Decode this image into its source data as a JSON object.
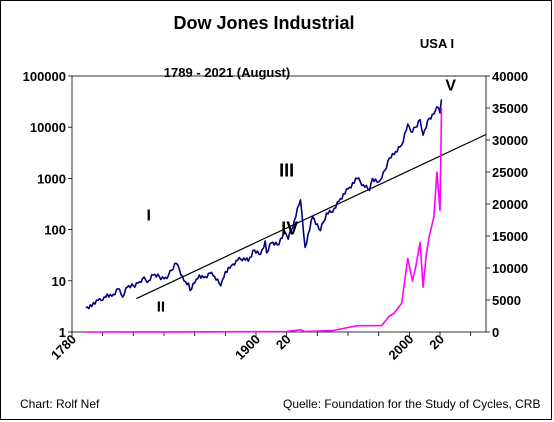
{
  "chart_data": {
    "type": "line",
    "title": "Dow Jones Industrial",
    "subtitle": "1789 -  2021 (August)",
    "top_label": "USA I",
    "xlim": [
      1780,
      2050
    ],
    "x_ticks": [
      "1780",
      "1900",
      "20",
      "2000",
      "20"
    ],
    "y_left": {
      "scale": "log",
      "lim": [
        1,
        100000
      ],
      "ticks": [
        "100000",
        "10000",
        "1000",
        "100",
        "10",
        "1"
      ]
    },
    "y_right": {
      "scale": "linear",
      "lim": [
        0,
        40000
      ],
      "ticks": [
        "40000",
        "35000",
        "30000",
        "25000",
        "20000",
        "15000",
        "10000",
        "5000",
        "0"
      ]
    },
    "series": [
      {
        "axis": "left",
        "color": "#00007f",
        "points": [
          [
            1789,
            3.0
          ],
          [
            1795,
            3.5
          ],
          [
            1798,
            4.5
          ],
          [
            1800,
            4.2
          ],
          [
            1803,
            5.5
          ],
          [
            1806,
            5.0
          ],
          [
            1810,
            7.0
          ],
          [
            1813,
            4.8
          ],
          [
            1816,
            7.5
          ],
          [
            1820,
            8.0
          ],
          [
            1823,
            9.0
          ],
          [
            1826,
            11.0
          ],
          [
            1830,
            10.0
          ],
          [
            1833,
            13.0
          ],
          [
            1837,
            12.0
          ],
          [
            1840,
            11.0
          ],
          [
            1843,
            13.0
          ],
          [
            1845,
            16.0
          ],
          [
            1848,
            22.0
          ],
          [
            1850,
            17.0
          ],
          [
            1853,
            10.0
          ],
          [
            1856,
            9.0
          ],
          [
            1857,
            6.5
          ],
          [
            1860,
            9.0
          ],
          [
            1863,
            13.0
          ],
          [
            1866,
            11.5
          ],
          [
            1870,
            14.0
          ],
          [
            1873,
            12.0
          ],
          [
            1877,
            8.0
          ],
          [
            1880,
            15.0
          ],
          [
            1884,
            20.0
          ],
          [
            1888,
            25.0
          ],
          [
            1892,
            28.0
          ],
          [
            1895,
            24.0
          ],
          [
            1899,
            40.0
          ],
          [
            1903,
            33.0
          ],
          [
            1906,
            60.0
          ],
          [
            1907,
            35.0
          ],
          [
            1910,
            55.0
          ],
          [
            1914,
            50.0
          ],
          [
            1919,
            90.0
          ],
          [
            1921,
            65.0
          ],
          [
            1925,
            150.0
          ],
          [
            1929,
            380.0
          ],
          [
            1932,
            45.0
          ],
          [
            1937,
            180.0
          ],
          [
            1942,
            95.0
          ],
          [
            1946,
            210.0
          ],
          [
            1950,
            220.0
          ],
          [
            1955,
            400.0
          ],
          [
            1960,
            620.0
          ],
          [
            1966,
            990.0
          ],
          [
            1970,
            750.0
          ],
          [
            1974,
            580.0
          ],
          [
            1976,
            1000.0
          ],
          [
            1980,
            850.0
          ],
          [
            1982,
            1000.0
          ],
          [
            1987,
            2500.0
          ],
          [
            1990,
            2900.0
          ],
          [
            1995,
            4500.0
          ],
          [
            1999,
            11500.0
          ],
          [
            2002,
            8000.0
          ],
          [
            2007,
            14000.0
          ],
          [
            2009,
            7000.0
          ],
          [
            2013,
            15000.0
          ],
          [
            2016,
            18000.0
          ],
          [
            2018,
            25000.0
          ],
          [
            2020,
            19000.0
          ],
          [
            2020.5,
            27000.0
          ],
          [
            2021,
            35000.0
          ]
        ]
      },
      {
        "axis": "right",
        "color": "#ff00ff",
        "points": [
          [
            1789,
            2
          ],
          [
            1850,
            15
          ],
          [
            1900,
            45
          ],
          [
            1920,
            80
          ],
          [
            1929,
            350
          ],
          [
            1932,
            60
          ],
          [
            1950,
            220
          ],
          [
            1966,
            990
          ],
          [
            1982,
            1000
          ],
          [
            1987,
            2500
          ],
          [
            1990,
            2900
          ],
          [
            1995,
            4500
          ],
          [
            1997,
            8000
          ],
          [
            1999,
            11500
          ],
          [
            2002,
            8000
          ],
          [
            2004,
            10000
          ],
          [
            2007,
            14000
          ],
          [
            2009,
            7000
          ],
          [
            2011,
            12000
          ],
          [
            2013,
            15000
          ],
          [
            2016,
            18000
          ],
          [
            2018,
            25000
          ],
          [
            2020,
            19000
          ],
          [
            2020.5,
            27000
          ],
          [
            2021,
            35000
          ]
        ]
      }
    ],
    "trendline": {
      "color": "#000000",
      "points": [
        [
          1822,
          4.5
        ],
        [
          2050,
          7200
        ]
      ]
    },
    "annotations": [
      {
        "text": "I",
        "x": 1830,
        "y": 150
      },
      {
        "text": "II",
        "x": 1838,
        "y": 2.5
      },
      {
        "text": "III",
        "x": 1920,
        "y": 1100
      },
      {
        "text": "IV",
        "x": 1922,
        "y": 80
      },
      {
        "text": "V",
        "x": 2027,
        "y": 52000
      }
    ]
  },
  "footer": {
    "left": "Chart: Rolf Nef",
    "right": "Quelle: Foundation for the Study of Cycles, CRB"
  }
}
